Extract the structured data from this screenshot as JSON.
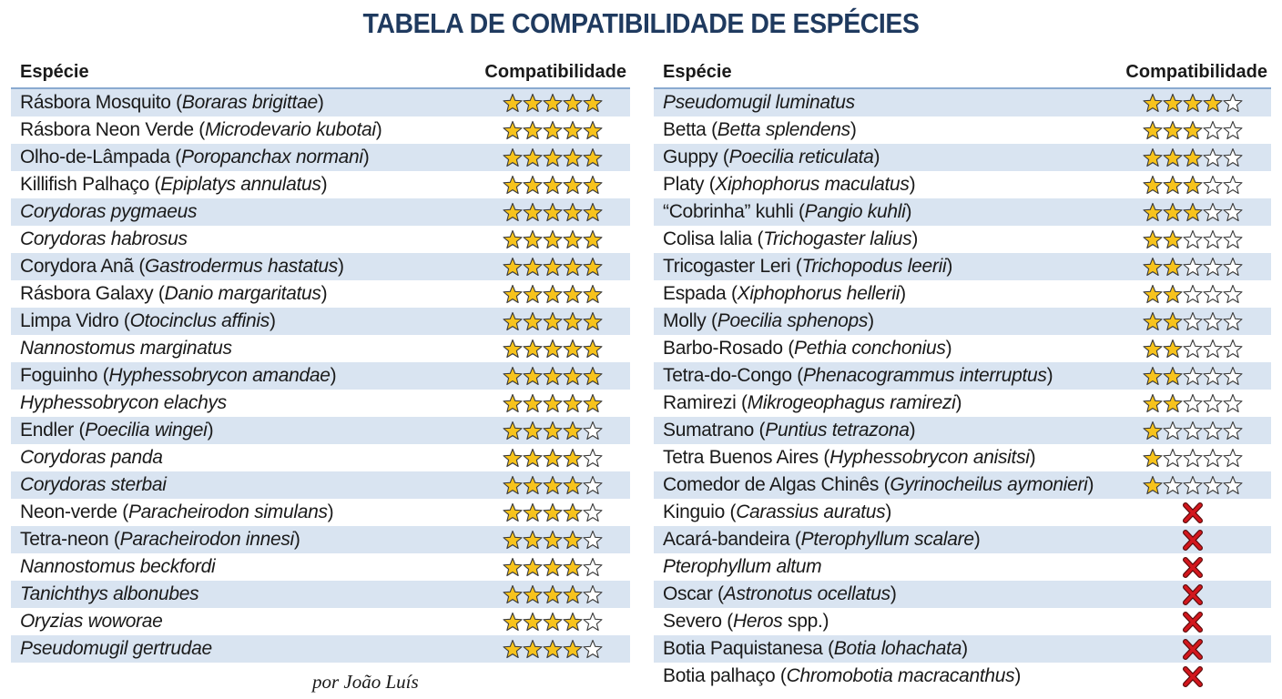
{
  "title": "TABELA DE COMPATIBILIDADE DE ESPÉCIES",
  "author": "por João Luís",
  "rating_max": 5,
  "tables": [
    {
      "headers": [
        "Espécie",
        "Compatibilidade"
      ],
      "rows": [
        {
          "name": [
            "Rásbora Mosquito (",
            {
              "t": "Boraras brigittae",
              "i": true
            },
            ")"
          ],
          "rating": 5
        },
        {
          "name": [
            "Rásbora Neon Verde (",
            {
              "t": "Microdevario kubotai",
              "i": true
            },
            ")"
          ],
          "rating": 5
        },
        {
          "name": [
            "Olho-de-Lâmpada (",
            {
              "t": "Poropanchax normani",
              "i": true
            },
            ")"
          ],
          "rating": 5
        },
        {
          "name": [
            "Killifish Palhaço (",
            {
              "t": "Epiplatys annulatus",
              "i": true
            },
            ")"
          ],
          "rating": 5
        },
        {
          "name": [
            {
              "t": "Corydoras pygmaeus",
              "i": true
            }
          ],
          "rating": 5
        },
        {
          "name": [
            {
              "t": "Corydoras habrosus",
              "i": true
            }
          ],
          "rating": 5
        },
        {
          "name": [
            "Corydora Anã (",
            {
              "t": "Gastrodermus hastatus",
              "i": true
            },
            ")"
          ],
          "rating": 5
        },
        {
          "name": [
            "Rásbora Galaxy (",
            {
              "t": "Danio margaritatus",
              "i": true
            },
            ")"
          ],
          "rating": 5
        },
        {
          "name": [
            "Limpa Vidro (",
            {
              "t": "Otocinclus affinis",
              "i": true
            },
            ")"
          ],
          "rating": 5
        },
        {
          "name": [
            {
              "t": "Nannostomus marginatus",
              "i": true
            }
          ],
          "rating": 5
        },
        {
          "name": [
            "Foguinho (",
            {
              "t": "Hyphessobrycon amandae",
              "i": true
            },
            ")"
          ],
          "rating": 5
        },
        {
          "name": [
            {
              "t": "Hyphessobrycon elachys",
              "i": true
            }
          ],
          "rating": 5
        },
        {
          "name": [
            "Endler (",
            {
              "t": "Poecilia wingei",
              "i": true
            },
            ")"
          ],
          "rating": 4
        },
        {
          "name": [
            {
              "t": "Corydoras panda",
              "i": true
            }
          ],
          "rating": 4
        },
        {
          "name": [
            {
              "t": "Corydoras sterbai",
              "i": true
            }
          ],
          "rating": 4
        },
        {
          "name": [
            "Neon-verde (",
            {
              "t": "Paracheirodon simulans",
              "i": true
            },
            ")"
          ],
          "rating": 4
        },
        {
          "name": [
            "Tetra-neon (",
            {
              "t": "Paracheirodon innesi",
              "i": true
            },
            ")"
          ],
          "rating": 4
        },
        {
          "name": [
            {
              "t": "Nannostomus beckfordi",
              "i": true
            }
          ],
          "rating": 4
        },
        {
          "name": [
            {
              "t": "Tanichthys albonubes",
              "i": true
            }
          ],
          "rating": 4
        },
        {
          "name": [
            {
              "t": "Oryzias woworae",
              "i": true
            }
          ],
          "rating": 4
        },
        {
          "name": [
            {
              "t": "Pseudomugil gertrudae",
              "i": true
            }
          ],
          "rating": 4
        }
      ]
    },
    {
      "headers": [
        "Espécie",
        "Compatibilidade"
      ],
      "rows": [
        {
          "name": [
            {
              "t": "Pseudomugil luminatus",
              "i": true
            }
          ],
          "rating": 4
        },
        {
          "name": [
            "Betta (",
            {
              "t": "Betta splendens",
              "i": true
            },
            ")"
          ],
          "rating": 3
        },
        {
          "name": [
            "Guppy (",
            {
              "t": "Poecilia reticulata",
              "i": true
            },
            ")"
          ],
          "rating": 3
        },
        {
          "name": [
            "Platy (",
            {
              "t": "Xiphophorus maculatus",
              "i": true
            },
            ")"
          ],
          "rating": 3
        },
        {
          "name": [
            "“Cobrinha” kuhli (",
            {
              "t": "Pangio kuhli",
              "i": true
            },
            ")"
          ],
          "rating": 3
        },
        {
          "name": [
            "Colisa lalia (",
            {
              "t": "Trichogaster lalius",
              "i": true
            },
            ")"
          ],
          "rating": 2
        },
        {
          "name": [
            "Tricogaster Leri (",
            {
              "t": "Trichopodus leerii",
              "i": true
            },
            ")"
          ],
          "rating": 2
        },
        {
          "name": [
            "Espada (",
            {
              "t": "Xiphophorus hellerii",
              "i": true
            },
            ")"
          ],
          "rating": 2
        },
        {
          "name": [
            "Molly (",
            {
              "t": "Poecilia sphenops",
              "i": true
            },
            ")"
          ],
          "rating": 2
        },
        {
          "name": [
            "Barbo-Rosado (",
            {
              "t": "Pethia conchonius",
              "i": true
            },
            ")"
          ],
          "rating": 2
        },
        {
          "name": [
            "Tetra-do-Congo (",
            {
              "t": "Phenacogrammus interruptus",
              "i": true
            },
            ")"
          ],
          "rating": 2
        },
        {
          "name": [
            "Ramirezi (",
            {
              "t": "Mikrogeophagus ramirezi",
              "i": true
            },
            ")"
          ],
          "rating": 2
        },
        {
          "name": [
            "Sumatrano (",
            {
              "t": "Puntius tetrazona",
              "i": true
            },
            ")"
          ],
          "rating": 1
        },
        {
          "name": [
            "Tetra Buenos Aires (",
            {
              "t": "Hyphessobrycon anisitsi",
              "i": true
            },
            ")"
          ],
          "rating": 1
        },
        {
          "name": [
            "Comedor de Algas Chinês (",
            {
              "t": "Gyrinocheilus aymonieri",
              "i": true
            },
            ")"
          ],
          "rating": 1
        },
        {
          "name": [
            "Kinguio (",
            {
              "t": "Carassius auratus",
              "i": true
            },
            ")"
          ],
          "rating": 0
        },
        {
          "name": [
            "Acará-bandeira (",
            {
              "t": "Pterophyllum scalare",
              "i": true
            },
            ")"
          ],
          "rating": 0
        },
        {
          "name": [
            {
              "t": "Pterophyllum altum",
              "i": true
            }
          ],
          "rating": 0
        },
        {
          "name": [
            "Oscar (",
            {
              "t": "Astronotus ocellatus",
              "i": true
            },
            ")"
          ],
          "rating": 0
        },
        {
          "name": [
            "Severo (",
            {
              "t": "Heros",
              "i": true
            },
            " spp.)"
          ],
          "rating": 0
        },
        {
          "name": [
            "Botia Paquistanesa (",
            {
              "t": "Botia lohachata",
              "i": true
            },
            ")"
          ],
          "rating": 0
        },
        {
          "name": [
            "Botia palhaço (",
            {
              "t": "Chromobotia macracanthus",
              "i": true
            },
            ")"
          ],
          "rating": 0
        }
      ]
    }
  ]
}
